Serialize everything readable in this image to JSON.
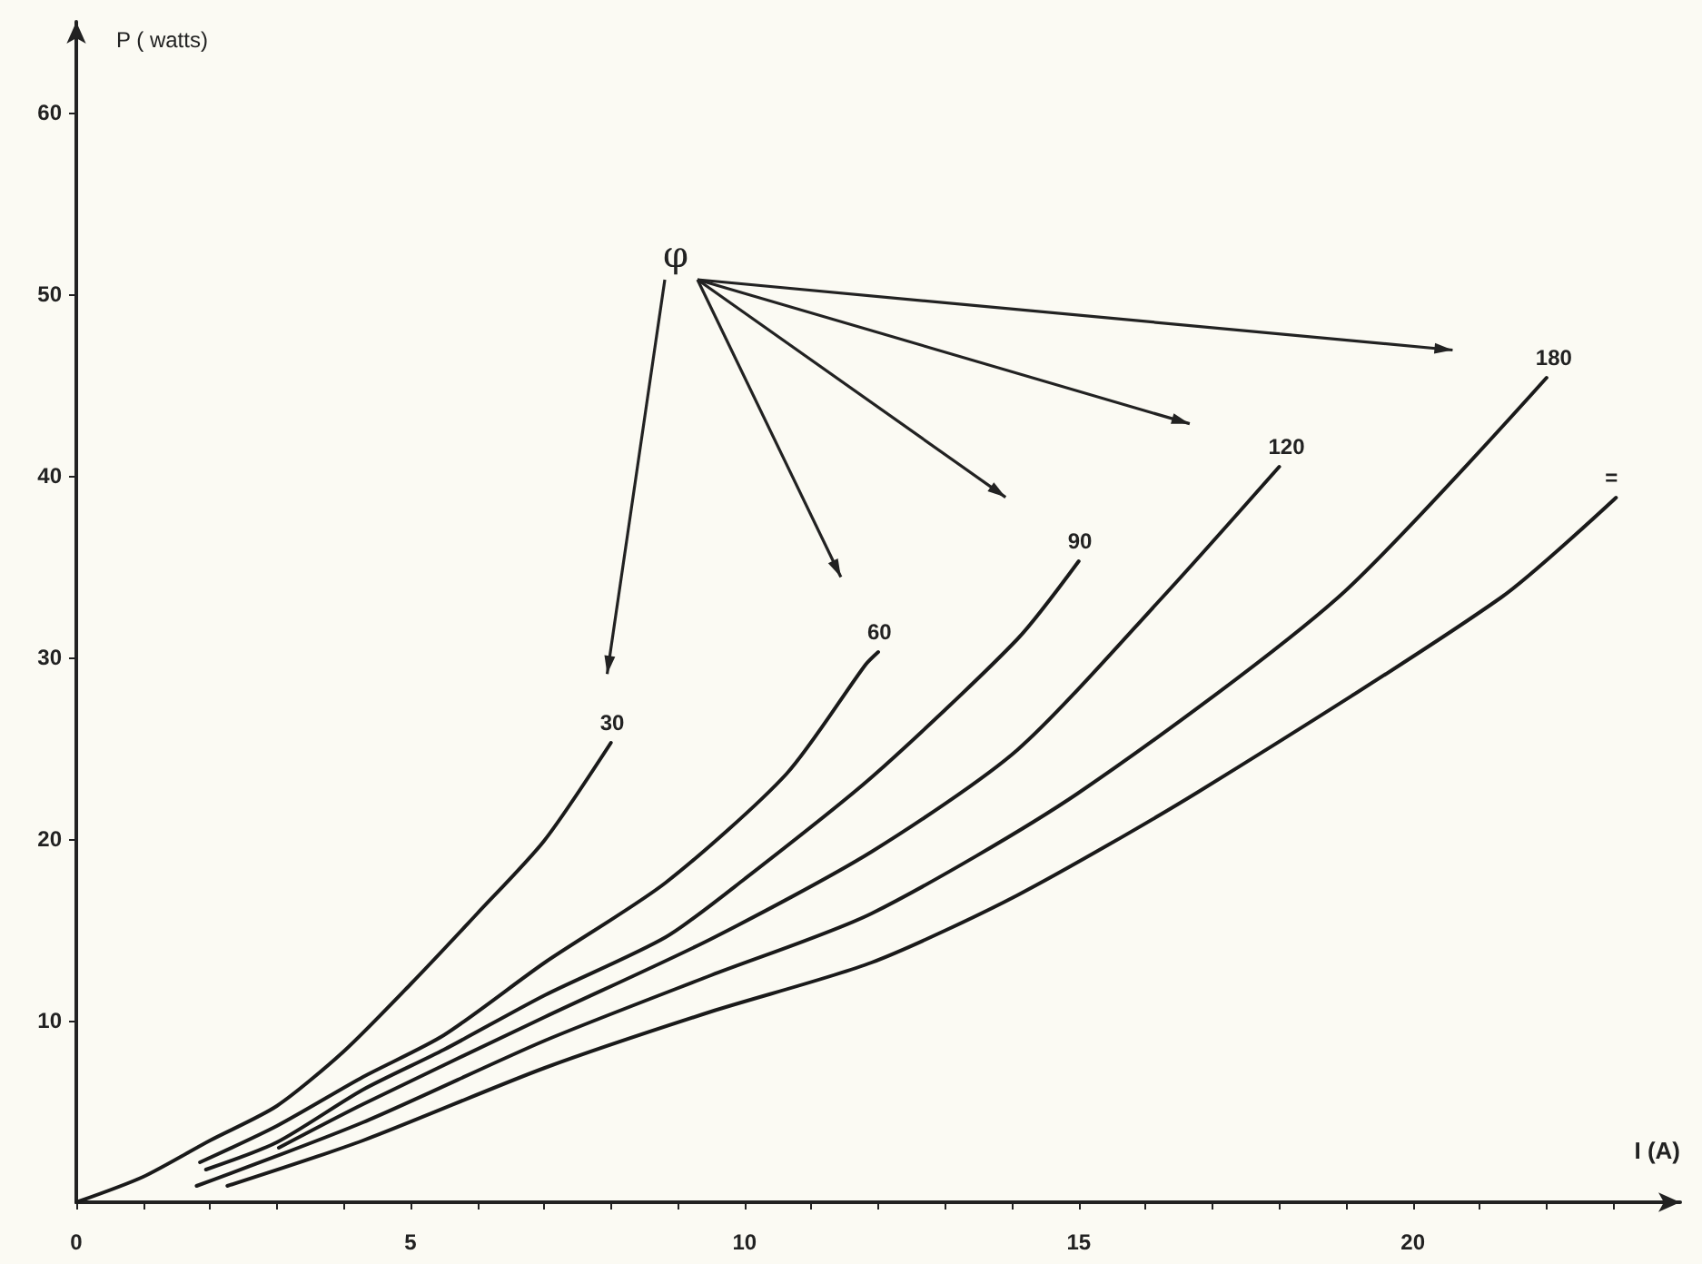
{
  "chart_data": {
    "type": "line",
    "xlabel": "I (A)",
    "ylabel": "P ( watts)",
    "annotations": [
      "φ"
    ],
    "xlim": [
      0,
      24
    ],
    "ylim": [
      0,
      65
    ],
    "xticks": [
      0,
      {
        "value": 1,
        "label": null
      },
      {
        "value": 2,
        "label": null
      },
      {
        "value": 3,
        "label": null
      },
      {
        "value": 4,
        "label": null
      },
      5,
      {
        "value": 6,
        "label": null
      },
      {
        "value": 7,
        "label": null
      },
      {
        "value": 8,
        "label": null
      },
      {
        "value": 9,
        "label": null
      },
      10,
      {
        "value": 11,
        "label": null
      },
      {
        "value": 12,
        "label": null
      },
      {
        "value": 13,
        "label": null
      },
      {
        "value": 14,
        "label": null
      },
      15,
      {
        "value": 16,
        "label": null
      },
      {
        "value": 17,
        "label": null
      },
      {
        "value": 18,
        "label": null
      },
      {
        "value": 19,
        "label": null
      },
      20,
      {
        "value": 21,
        "label": null
      },
      {
        "value": 22,
        "label": null
      },
      {
        "value": 23,
        "label": null
      }
    ],
    "yticks": [
      10,
      20,
      30,
      40,
      50,
      60
    ],
    "grid": false,
    "legend": false,
    "marker": "none",
    "line_style": "solid",
    "series": [
      {
        "name": "30",
        "color": "#1a1a1a",
        "x": [
          0,
          1,
          2,
          3,
          4,
          5,
          6,
          7,
          8
        ],
        "values": [
          0,
          1.4,
          3.4,
          5.3,
          8.3,
          12.0,
          15.9,
          19.9,
          25.3
        ]
      },
      {
        "name": "60",
        "color": "#1a1a1a",
        "x": [
          1.85,
          3,
          4.29,
          5.5,
          7.01,
          8.82,
          10.63,
          11.81,
          12
        ],
        "values": [
          2.2,
          4.2,
          6.9,
          9.2,
          13.2,
          17.6,
          23.6,
          29.6,
          30.3
        ]
      },
      {
        "name": "90",
        "color": "#1a1a1a",
        "x": [
          1.94,
          3,
          4.29,
          5.5,
          7.01,
          8.82,
          10,
          11.9,
          14.08,
          15
        ],
        "values": [
          1.8,
          3.3,
          6.2,
          8.4,
          11.4,
          14.6,
          17.8,
          23.4,
          31.0,
          35.3
        ]
      },
      {
        "name": "120",
        "color": "#1a1a1a",
        "x": [
          3.03,
          4.29,
          7.01,
          9.5,
          11.9,
          14.08,
          16.25,
          18
        ],
        "values": [
          3.0,
          5.4,
          10.2,
          14.5,
          19.3,
          24.9,
          33.3,
          40.5
        ]
      },
      {
        "name": "180",
        "color": "#1a1a1a",
        "x": [
          1.8,
          4.29,
          7.01,
          9.5,
          11.9,
          14.98,
          18.88,
          22
        ],
        "values": [
          0.9,
          4.4,
          8.9,
          12.5,
          15.9,
          22.5,
          33.3,
          45.4
        ]
      },
      {
        "name": "=",
        "color": "#1a1a1a",
        "x": [
          2.26,
          4.29,
          7.01,
          9.5,
          11.9,
          14.08,
          16.79,
          21.32,
          23.04
        ],
        "values": [
          0.9,
          3.4,
          7.4,
          10.5,
          13.2,
          16.9,
          22.6,
          33.3,
          38.8
        ]
      }
    ]
  }
}
